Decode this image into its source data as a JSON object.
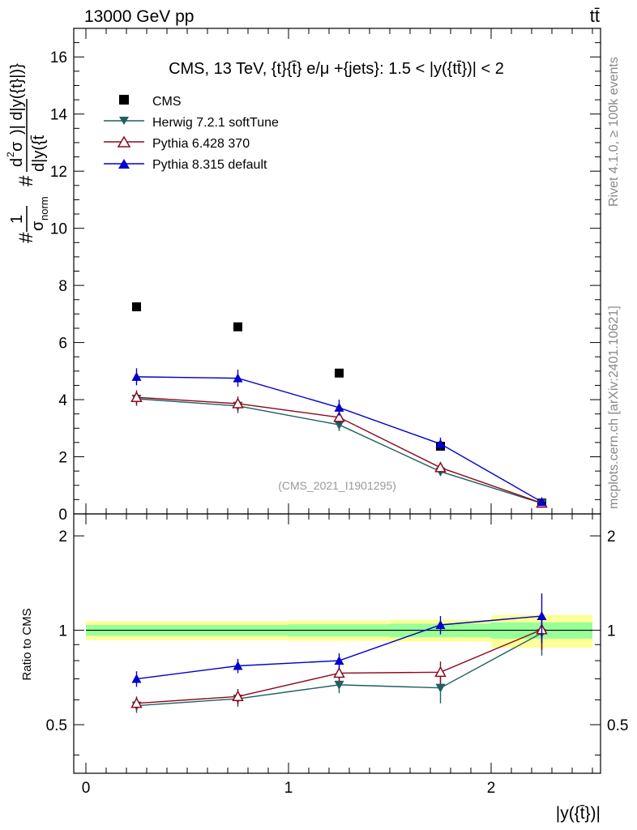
{
  "header": {
    "left": "13000 GeV pp",
    "right": "tt̄"
  },
  "side_labels": {
    "rivet": "Rivet 4.1.0, ≥ 100k events",
    "mcplots": "mcplots.cern.ch [arXiv:2401.10621]"
  },
  "colors": {
    "cms": "#000000",
    "herwig": "#1f5f5f",
    "pythia6": "#8b0a1e",
    "pythia8": "#0000cc",
    "band_inner": "#99ff99",
    "band_outer": "#ffff99",
    "watermark": "#999999"
  },
  "chart_data": [
    {
      "type": "line",
      "title": "CMS, 13 TeV, {t}{t̄} e/μ +{jets}: 1.5 < |y({tt̄})| < 2",
      "ylabel_parts": {
        "prefix": "#",
        "one": "1",
        "sigma": "σ",
        "sub_norm": "norm",
        "hash2": "#",
        "d": "d",
        "sup2": "2",
        "sigma2": "σ",
        "den": "d|y({t̄",
        "right": ")| d|y({t}|)}"
      },
      "watermark": "(CMS_2021_I1901295)",
      "xlim": [
        -0.06,
        2.54
      ],
      "ylim": [
        0,
        17
      ],
      "yticks": [
        0,
        2,
        4,
        6,
        8,
        10,
        12,
        14,
        16
      ],
      "x": [
        0.25,
        0.75,
        1.25,
        1.75,
        2.25
      ],
      "series": [
        {
          "name": "CMS",
          "marker": "square",
          "values": [
            7.25,
            6.55,
            4.93,
            2.37,
            0.38
          ]
        },
        {
          "name": "Herwig 7.2.1 softTune",
          "marker": "triangle-down",
          "values": [
            4.03,
            3.78,
            3.12,
            1.48,
            0.37
          ],
          "errors": [
            0.25,
            0.25,
            0.22,
            0.15,
            0.05
          ]
        },
        {
          "name": "Pythia 6.428 370",
          "marker": "triangle-up-open",
          "values": [
            4.08,
            3.86,
            3.38,
            1.62,
            0.38
          ],
          "errors": [
            0.25,
            0.25,
            0.22,
            0.15,
            0.05
          ]
        },
        {
          "name": "Pythia 8.315 default",
          "marker": "triangle-up",
          "values": [
            4.8,
            4.75,
            3.72,
            2.45,
            0.42
          ],
          "errors": [
            0.3,
            0.3,
            0.28,
            0.22,
            0.06
          ]
        }
      ]
    },
    {
      "type": "line",
      "ylabel": "Ratio to CMS",
      "xlabel": "|y({t̄})|",
      "xlim": [
        -0.06,
        2.54
      ],
      "ylim": [
        0.35,
        2.35
      ],
      "ytick_labels": [
        "0.5",
        "1",
        "2"
      ],
      "ytick_values": [
        0.5,
        1,
        2
      ],
      "xtick_labels": [
        "0",
        "1",
        "2"
      ],
      "xtick_values": [
        0,
        1,
        2
      ],
      "x": [
        0.25,
        0.75,
        1.25,
        1.75,
        2.25
      ],
      "bins": [
        [
          0,
          0.5
        ],
        [
          0.5,
          1.0
        ],
        [
          1.0,
          1.5
        ],
        [
          1.5,
          2.0
        ],
        [
          2.0,
          2.5
        ]
      ],
      "band_inner": [
        [
          0.96,
          1.04
        ],
        [
          0.96,
          1.04
        ],
        [
          0.955,
          1.045
        ],
        [
          0.95,
          1.05
        ],
        [
          0.94,
          1.06
        ]
      ],
      "band_outer": [
        [
          0.93,
          1.07
        ],
        [
          0.93,
          1.07
        ],
        [
          0.925,
          1.075
        ],
        [
          0.92,
          1.08
        ],
        [
          0.88,
          1.12
        ]
      ],
      "series": [
        {
          "name": "Herwig 7.2.1 softTune",
          "marker": "triangle-down",
          "values": [
            0.575,
            0.605,
            0.67,
            0.655,
            0.98
          ],
          "errors": [
            0.03,
            0.035,
            0.04,
            0.07,
            0.15
          ]
        },
        {
          "name": "Pythia 6.428 370",
          "marker": "triangle-up-open",
          "values": [
            0.585,
            0.615,
            0.73,
            0.735,
            1.005
          ],
          "errors": [
            0.03,
            0.035,
            0.04,
            0.06,
            0.14
          ]
        },
        {
          "name": "Pythia 8.315 default",
          "marker": "triangle-up",
          "values": [
            0.7,
            0.77,
            0.8,
            1.04,
            1.11
          ],
          "errors": [
            0.04,
            0.04,
            0.045,
            0.07,
            0.2
          ]
        }
      ]
    }
  ]
}
